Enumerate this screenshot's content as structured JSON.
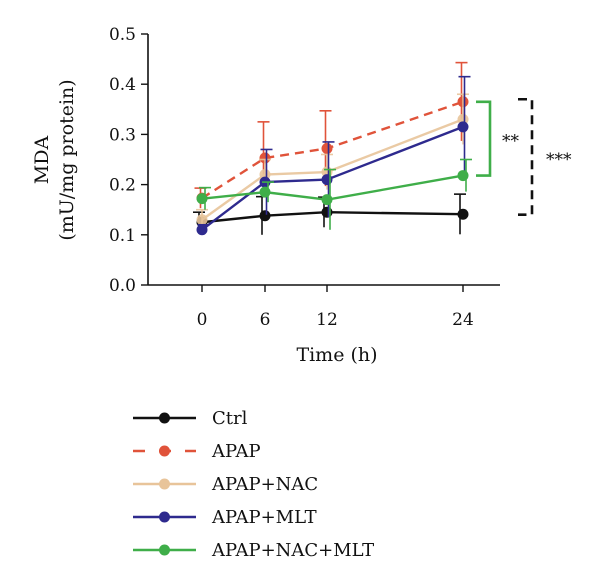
{
  "chart_data": {
    "type": "line",
    "title": "",
    "xlabel": "Time (h)",
    "ylabel_line1": "MDA",
    "ylabel_line2": "(mU/mg protein)",
    "x": [
      0,
      6,
      12,
      24
    ],
    "x_tick_labels": [
      "0",
      "6",
      "12",
      "24"
    ],
    "ylim": [
      0.0,
      0.5
    ],
    "y_ticks": [
      0.0,
      0.1,
      0.2,
      0.3,
      0.4,
      0.5
    ],
    "y_tick_labels": [
      "0.0",
      "0.1",
      "0.2",
      "0.3",
      "0.4",
      "0.5"
    ],
    "grid": false,
    "legend_position": "bottom",
    "series": [
      {
        "name": "Ctrl",
        "color": "#111111",
        "dashed": false,
        "values": [
          0.125,
          0.138,
          0.145,
          0.141
        ],
        "errors": [
          0.02,
          0.038,
          0.03,
          0.04
        ]
      },
      {
        "name": "APAP",
        "color": "#e0533a",
        "dashed": true,
        "values": [
          0.173,
          0.253,
          0.272,
          0.365
        ],
        "errors": [
          0.02,
          0.072,
          0.075,
          0.078
        ]
      },
      {
        "name": "APAP+NAC",
        "color": "#e8c49a",
        "dashed": false,
        "values": [
          0.13,
          0.22,
          0.225,
          0.33
        ],
        "errors": [
          0.02,
          0.03,
          0.035,
          0.05
        ]
      },
      {
        "name": "APAP+MLT",
        "color": "#2e2a8e",
        "dashed": false,
        "values": [
          0.11,
          0.205,
          0.21,
          0.315
        ],
        "errors": [
          0.01,
          0.065,
          0.075,
          0.1
        ]
      },
      {
        "name": "APAP+NAC+MLT",
        "color": "#3fae49",
        "dashed": false,
        "values": [
          0.172,
          0.185,
          0.17,
          0.218
        ],
        "errors": [
          0.022,
          0.02,
          0.06,
          0.032
        ]
      }
    ],
    "annotations": [
      {
        "label": "**",
        "from_series": "APAP+NAC+MLT",
        "to_series": "APAP",
        "style": "solid-bracket",
        "color": "#3fae49"
      },
      {
        "label": "***",
        "from_series": "Ctrl",
        "to_series": "APAP",
        "style": "dashed-bracket",
        "color": "#111111"
      }
    ]
  }
}
